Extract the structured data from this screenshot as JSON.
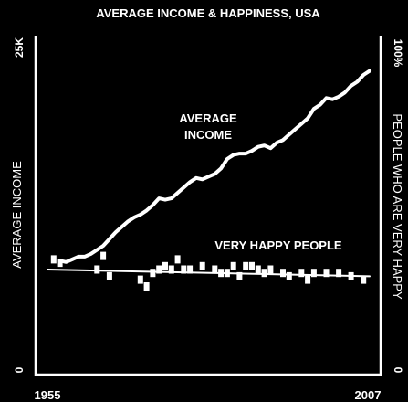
{
  "chart_data": {
    "type": "line",
    "title": "AVERAGE INCOME & HAPPINESS, USA",
    "x": {
      "start": 1955,
      "end": 2007,
      "tick_labels": [
        "1955",
        "2007"
      ]
    },
    "left_axis": {
      "label": "AVERAGE INCOME",
      "range": [
        0,
        25000
      ],
      "tick_labels": [
        "25K",
        "0"
      ]
    },
    "right_axis": {
      "label": "PEOPLE WHO ARE VERY HAPPY",
      "range": [
        0,
        100
      ],
      "tick_labels": [
        "100%",
        "0"
      ]
    },
    "annotations": {
      "income": [
        "AVERAGE",
        "INCOME"
      ],
      "happy": "VERY HAPPY PEOPLE"
    },
    "series": [
      {
        "key": "income",
        "axis": "left",
        "style": "line",
        "points": [
          [
            1957,
            8400
          ],
          [
            1958,
            8300
          ],
          [
            1959,
            8500
          ],
          [
            1960,
            8700
          ],
          [
            1961,
            8700
          ],
          [
            1962,
            8900
          ],
          [
            1963,
            9200
          ],
          [
            1964,
            9500
          ],
          [
            1965,
            10000
          ],
          [
            1966,
            10500
          ],
          [
            1967,
            10900
          ],
          [
            1968,
            11300
          ],
          [
            1969,
            11600
          ],
          [
            1970,
            11800
          ],
          [
            1971,
            12100
          ],
          [
            1972,
            12500
          ],
          [
            1973,
            13000
          ],
          [
            1974,
            12900
          ],
          [
            1975,
            13000
          ],
          [
            1976,
            13400
          ],
          [
            1977,
            13800
          ],
          [
            1978,
            14200
          ],
          [
            1979,
            14500
          ],
          [
            1980,
            14400
          ],
          [
            1981,
            14600
          ],
          [
            1982,
            14800
          ],
          [
            1983,
            15200
          ],
          [
            1984,
            15900
          ],
          [
            1985,
            16200
          ],
          [
            1986,
            16300
          ],
          [
            1987,
            16300
          ],
          [
            1988,
            16500
          ],
          [
            1989,
            16800
          ],
          [
            1990,
            16900
          ],
          [
            1991,
            16700
          ],
          [
            1992,
            17100
          ],
          [
            1993,
            17300
          ],
          [
            1994,
            17700
          ],
          [
            1995,
            18100
          ],
          [
            1996,
            18500
          ],
          [
            1997,
            18900
          ],
          [
            1998,
            19600
          ],
          [
            1999,
            19900
          ],
          [
            2000,
            20400
          ],
          [
            2001,
            20300
          ],
          [
            2002,
            20500
          ],
          [
            2003,
            20800
          ],
          [
            2004,
            21300
          ],
          [
            2005,
            21600
          ],
          [
            2006,
            22100
          ],
          [
            2007,
            22400
          ]
        ]
      },
      {
        "key": "happy",
        "axis": "right",
        "style": "markers",
        "points": [
          [
            1956,
            34
          ],
          [
            1957,
            33
          ],
          [
            1963,
            31
          ],
          [
            1964,
            35
          ],
          [
            1965,
            29
          ],
          [
            1970,
            28
          ],
          [
            1971,
            26
          ],
          [
            1972,
            30
          ],
          [
            1973,
            31
          ],
          [
            1974,
            32
          ],
          [
            1975,
            31
          ],
          [
            1976,
            34
          ],
          [
            1977,
            31
          ],
          [
            1978,
            31
          ],
          [
            1980,
            32
          ],
          [
            1982,
            31
          ],
          [
            1983,
            30
          ],
          [
            1984,
            30
          ],
          [
            1985,
            32
          ],
          [
            1986,
            29
          ],
          [
            1987,
            32
          ],
          [
            1988,
            32
          ],
          [
            1989,
            31
          ],
          [
            1990,
            30
          ],
          [
            1991,
            31
          ],
          [
            1993,
            30
          ],
          [
            1994,
            29
          ],
          [
            1996,
            30
          ],
          [
            1997,
            28
          ],
          [
            1998,
            30
          ],
          [
            2000,
            30
          ],
          [
            2002,
            30
          ],
          [
            2004,
            29
          ],
          [
            2006,
            28
          ]
        ]
      },
      {
        "key": "happy-trend",
        "axis": "right",
        "style": "line",
        "points": [
          [
            1955,
            31
          ],
          [
            2007,
            29
          ]
        ]
      }
    ]
  }
}
